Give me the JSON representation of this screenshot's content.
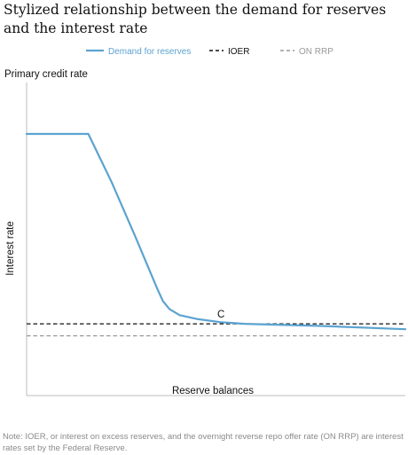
{
  "chart_data": {
    "type": "line",
    "title": "Stylized relationship between the demand for reserves and the interest rate",
    "xlabel": "Reserve balances",
    "ylabel": "Interest rate",
    "y_axis_top_label": "Primary credit rate",
    "xlim": [
      0,
      100
    ],
    "ylim": [
      0,
      100
    ],
    "grid": false,
    "legend_position": "top",
    "x_ticks": [],
    "y_ticks": [],
    "series": [
      {
        "name": "Demand for reserves",
        "style": "solid",
        "color": "#5ba3d0",
        "x": [
          0,
          16.3,
          22.5,
          28.6,
          34.6,
          36.0,
          37.7,
          40.4,
          44.9,
          51.3,
          57.6,
          77.8,
          100
        ],
        "y": [
          100,
          100,
          79.3,
          56.7,
          33.8,
          28.9,
          25.5,
          22.9,
          21.3,
          19.9,
          19.2,
          18.3,
          16.9
        ]
      },
      {
        "name": "IOER",
        "style": "dashed",
        "color": "#111111",
        "x": [
          0,
          100
        ],
        "y": [
          19.2,
          19.2
        ]
      },
      {
        "name": "ON RRP",
        "style": "dashed",
        "color": "#999999",
        "x": [
          0,
          100
        ],
        "y": [
          14.1,
          14.1
        ]
      }
    ],
    "annotations": [
      {
        "text": "C",
        "x": 51.3,
        "y": 19.2
      }
    ],
    "note": "Note: IOER, or interest on excess reserves, and the overnight reverse repo offer rate (ON RRP) are interest rates set by the Federal Reserve."
  }
}
